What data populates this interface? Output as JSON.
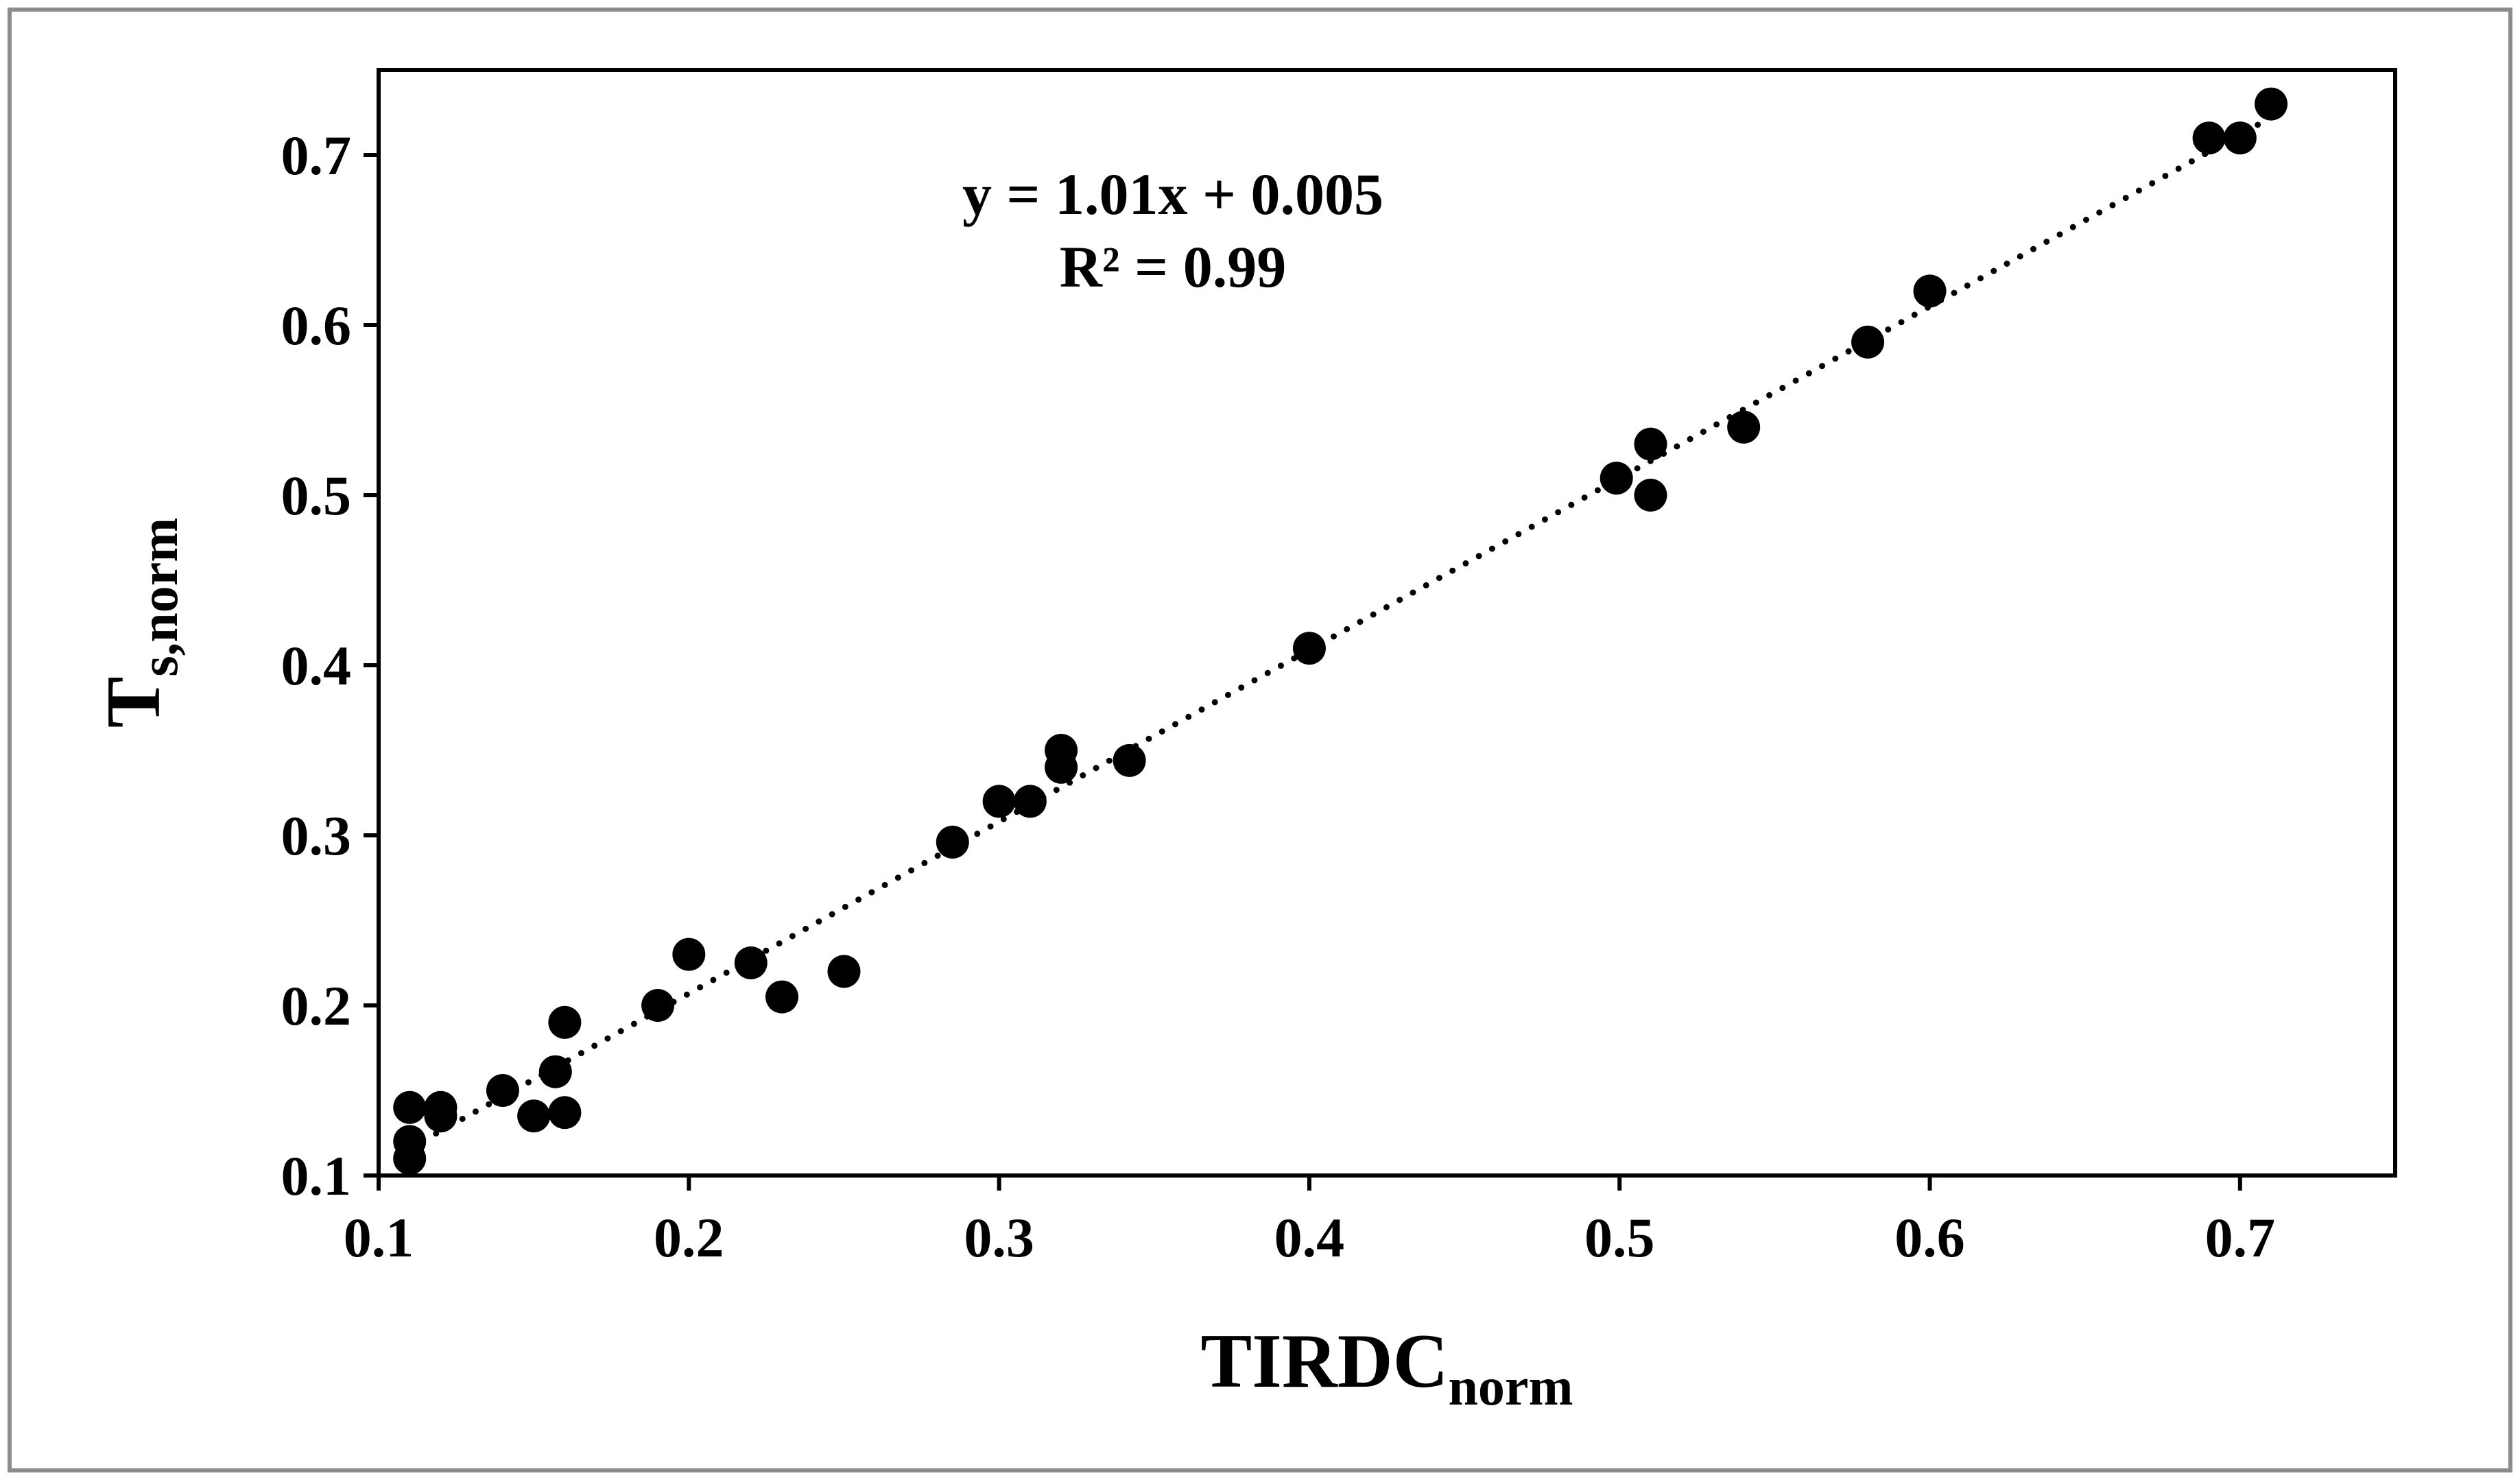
{
  "chart_data": {
    "type": "scatter",
    "xlabel": {
      "main": "TIRDC",
      "sub": "norm"
    },
    "ylabel": {
      "main": "T",
      "sub": "s,norm"
    },
    "xlim": [
      0.1,
      0.75
    ],
    "ylim": [
      0.1,
      0.75
    ],
    "xticks": [
      "0.1",
      "0.2",
      "0.3",
      "0.4",
      "0.5",
      "0.6",
      "0.7"
    ],
    "yticks": [
      "0.1",
      "0.2",
      "0.3",
      "0.4",
      "0.5",
      "0.6",
      "0.7"
    ],
    "grid": false,
    "legend": "none",
    "marker_color": "#000000",
    "trendline": {
      "style": "dotted",
      "color": "#000000",
      "slope": 1.01,
      "intercept": 0.005,
      "x_range": [
        0.11,
        0.71
      ]
    },
    "annotations": [
      "y = 1.01x + 0.005",
      "R² = 0.99"
    ],
    "points": [
      {
        "x": 0.11,
        "y": 0.14
      },
      {
        "x": 0.11,
        "y": 0.12
      },
      {
        "x": 0.11,
        "y": 0.11
      },
      {
        "x": 0.12,
        "y": 0.14
      },
      {
        "x": 0.12,
        "y": 0.135
      },
      {
        "x": 0.14,
        "y": 0.15
      },
      {
        "x": 0.15,
        "y": 0.135
      },
      {
        "x": 0.157,
        "y": 0.161
      },
      {
        "x": 0.16,
        "y": 0.19
      },
      {
        "x": 0.16,
        "y": 0.137
      },
      {
        "x": 0.19,
        "y": 0.2
      },
      {
        "x": 0.2,
        "y": 0.23
      },
      {
        "x": 0.22,
        "y": 0.225
      },
      {
        "x": 0.23,
        "y": 0.205
      },
      {
        "x": 0.25,
        "y": 0.22
      },
      {
        "x": 0.285,
        "y": 0.296
      },
      {
        "x": 0.3,
        "y": 0.32
      },
      {
        "x": 0.31,
        "y": 0.32
      },
      {
        "x": 0.32,
        "y": 0.35
      },
      {
        "x": 0.32,
        "y": 0.34
      },
      {
        "x": 0.342,
        "y": 0.344
      },
      {
        "x": 0.4,
        "y": 0.41
      },
      {
        "x": 0.499,
        "y": 0.51
      },
      {
        "x": 0.51,
        "y": 0.53
      },
      {
        "x": 0.51,
        "y": 0.5
      },
      {
        "x": 0.54,
        "y": 0.54
      },
      {
        "x": 0.58,
        "y": 0.59
      },
      {
        "x": 0.6,
        "y": 0.62
      },
      {
        "x": 0.69,
        "y": 0.71
      },
      {
        "x": 0.7,
        "y": 0.71
      },
      {
        "x": 0.71,
        "y": 0.73
      }
    ]
  }
}
